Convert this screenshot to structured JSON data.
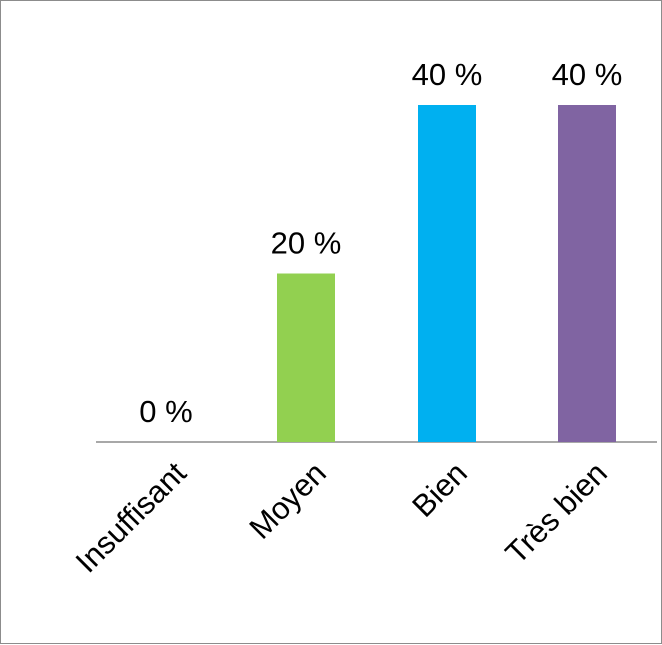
{
  "chart_data": {
    "type": "bar",
    "categories": [
      "Insuffisant",
      "Moyen",
      "Bien",
      "Très bien"
    ],
    "values": [
      0,
      20,
      40,
      40
    ],
    "value_labels": [
      "0 %",
      "20 %",
      "40 %",
      "40 %"
    ],
    "colors": [
      "#92d050",
      "#92d050",
      "#00b0f0",
      "#8064a2"
    ],
    "ylim": [
      0,
      40
    ],
    "grid": false,
    "legend": "none",
    "axis_color": "#8c8c8c"
  }
}
